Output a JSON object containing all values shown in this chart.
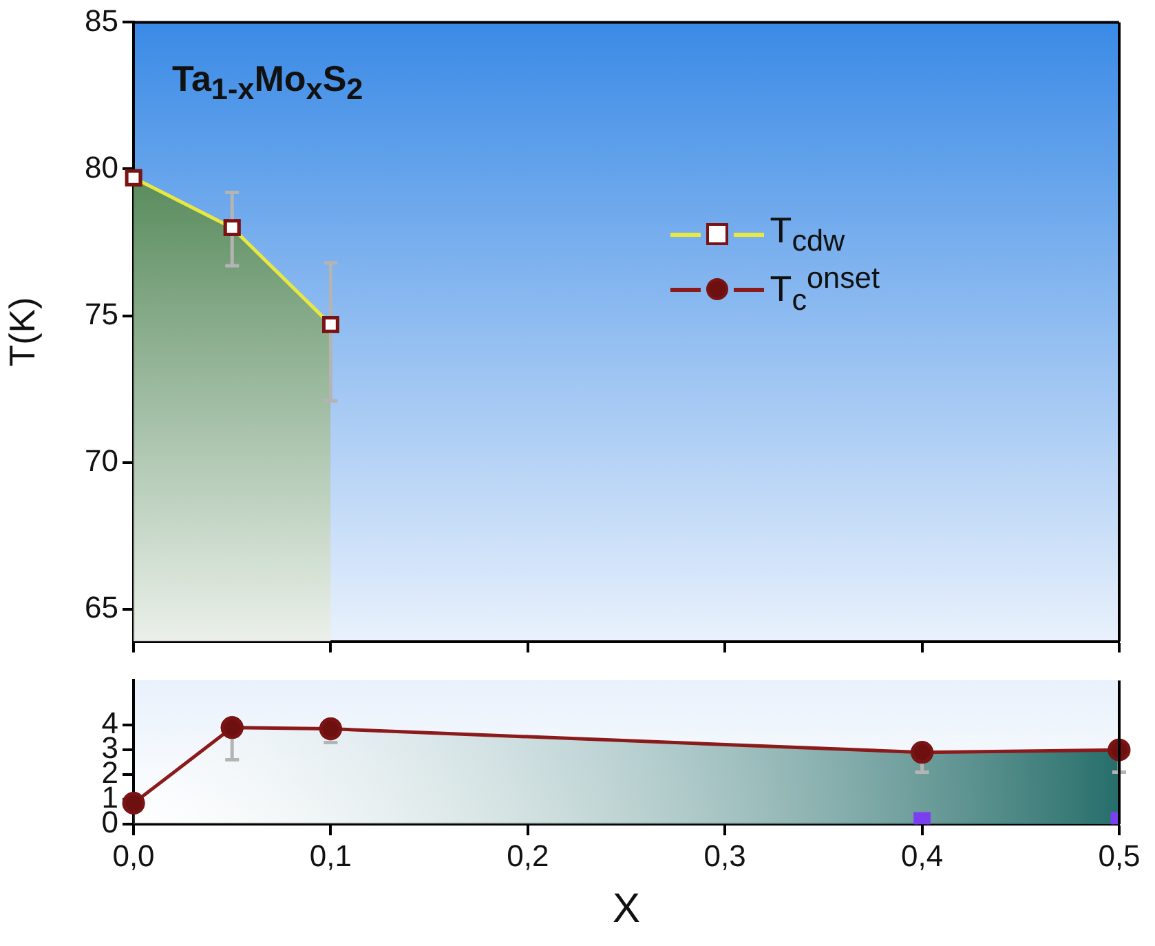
{
  "chart_data": [
    {
      "type": "area",
      "annotations": [
        "Ta$_{1-x}$Mo$_{x}$S$_{2}$"
      ],
      "ylabel": "T(K)",
      "xlim": [
        0,
        0.5
      ],
      "xticks": [
        {
          "value": 0,
          "label": null
        },
        {
          "value": 0.1,
          "label": null
        },
        {
          "value": 0.2,
          "label": null
        },
        {
          "value": 0.3,
          "label": null
        },
        {
          "value": 0.4,
          "label": null
        },
        {
          "value": 0.5,
          "label": null
        }
      ],
      "ylim": [
        63.9,
        85
      ],
      "yticks": [
        65,
        70,
        75,
        80,
        85
      ],
      "tick_labels": "y",
      "legend": "right",
      "marker": "square",
      "grid": false,
      "series": [
        {
          "name": "T$_{cdw}$",
          "color": "#e8e840",
          "x": [
            0,
            0.05,
            0.1
          ],
          "values": [
            79.7,
            78.0,
            74.7
          ],
          "errors": [
            null,
            [
              76.7,
              79.2
            ],
            [
              72.1,
              76.8
            ]
          ]
        }
      ]
    },
    {
      "type": "area",
      "xlabel": "X",
      "xlim": [
        0,
        0.5
      ],
      "xticks": [
        {
          "value": 0,
          "label": "0,0"
        },
        {
          "value": 0.1,
          "label": "0,1"
        },
        {
          "value": 0.2,
          "label": "0,2"
        },
        {
          "value": 0.3,
          "label": "0,3"
        },
        {
          "value": 0.4,
          "label": "0,4"
        },
        {
          "value": 0.5,
          "label": "0,5"
        }
      ],
      "ylim": [
        0,
        5.8
      ],
      "yticks": [
        0,
        1,
        2,
        3,
        4
      ],
      "marker": "circle",
      "grid": false,
      "series": [
        {
          "name": "T$_{c}$$^{onset}$",
          "color": "#8b1a1a",
          "x": [
            0,
            0.05,
            0.1,
            0.4,
            0.5
          ],
          "values": [
            0.85,
            3.9,
            3.85,
            2.9,
            3.0
          ],
          "errors": [
            null,
            [
              2.6,
              3.9
            ],
            [
              3.3,
              3.85
            ],
            [
              2.1,
              2.9
            ],
            [
              2.1,
              3.0
            ]
          ]
        },
        {
          "type": "scatter",
          "marker": "square",
          "color": "#7b3ff2",
          "x": [
            0.4,
            0.5
          ],
          "values": [
            0.15,
            0.15
          ]
        }
      ]
    }
  ]
}
